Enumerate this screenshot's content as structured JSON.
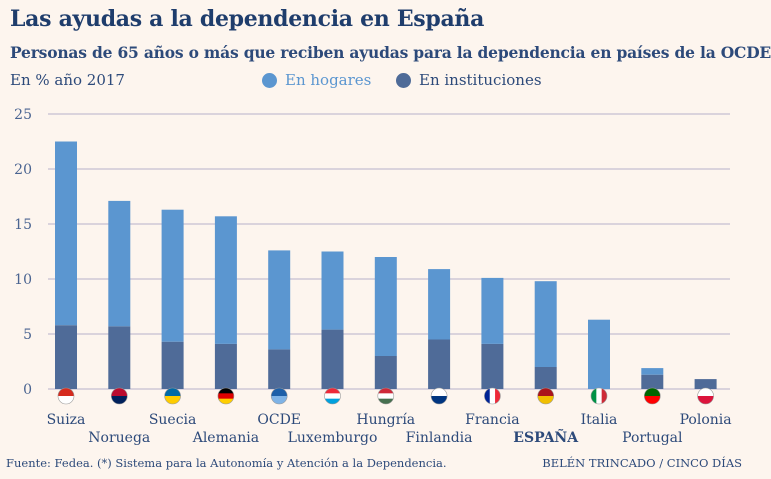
{
  "title": "Las ayudas a la dependencia en España",
  "subtitle": "Personas de 65 años o más que reciben ayudas para la dependencia en países de la OCDE",
  "unit_label": "En % año 2017",
  "source": "Fuente: Fedea. (*) Sistema para la Autonomía y Atención a la Dependencia.",
  "credit": "BELÉN TRINCADO / CINCO DÍAS",
  "colors": {
    "hogares": "#5b96d0",
    "instituciones": "#4f6b98",
    "highlight_label": "#2d4a7a"
  },
  "chart_data": {
    "type": "bar",
    "stacked": true,
    "categories": [
      "Suiza",
      "Noruega",
      "Suecia",
      "Alemania",
      "OCDE",
      "Luxemburgo",
      "Hungría",
      "Finlandia",
      "Francia",
      "ESPAÑA",
      "Italia",
      "Portugal",
      "Polonia"
    ],
    "highlight": "ESPAÑA",
    "series": [
      {
        "name": "En instituciones",
        "values": [
          5.8,
          5.7,
          4.3,
          4.1,
          3.6,
          5.4,
          3.0,
          4.5,
          4.1,
          2.0,
          0,
          1.3,
          0.9
        ]
      },
      {
        "name": "En hogares",
        "values": [
          16.7,
          11.4,
          12.0,
          11.6,
          9.0,
          7.1,
          9.0,
          6.4,
          6.0,
          7.8,
          6.3,
          0.6,
          0
        ]
      }
    ],
    "ylim": [
      0,
      25
    ],
    "yticks": [
      0,
      5,
      10,
      15,
      20,
      25
    ],
    "grid": true,
    "legend_position": "top",
    "flag_icons": [
      "switzerland-flag",
      "norway-flag",
      "sweden-flag",
      "germany-flag",
      "oecd-logo",
      "luxembourg-flag",
      "hungary-flag",
      "finland-flag",
      "france-flag",
      "spain-flag",
      "italy-flag",
      "portugal-flag",
      "poland-flag"
    ]
  }
}
